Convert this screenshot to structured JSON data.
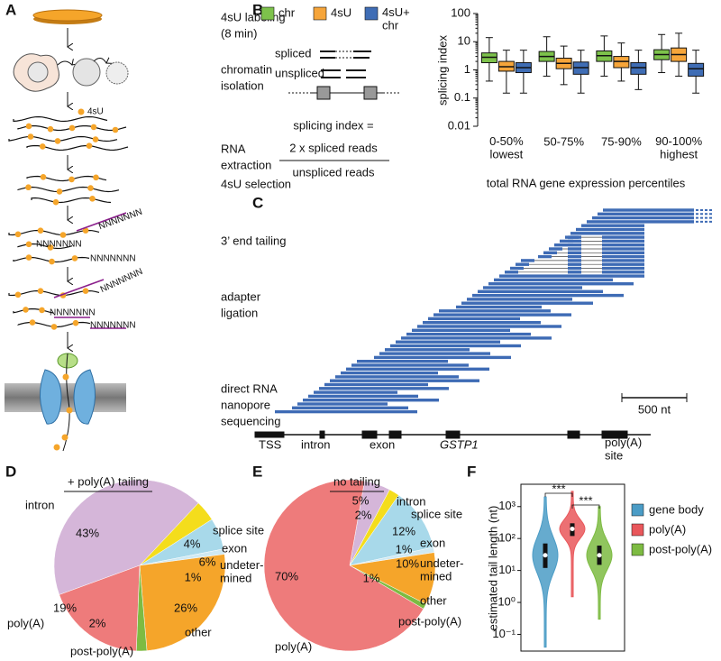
{
  "panel_labels": [
    "A",
    "B",
    "C",
    "D",
    "E",
    "F"
  ],
  "diagram_a": {
    "steps": [
      {
        "lines": [
          "4sU labeling",
          "(8 min)"
        ]
      },
      {
        "lines": [
          "chromatin",
          "isolation"
        ]
      },
      {
        "lines": [
          "RNA",
          "extraction"
        ]
      },
      {
        "lines": [
          "4sU selection"
        ]
      },
      {
        "lines": [
          "3’ end tailing"
        ]
      },
      {
        "lines": [
          "adapter",
          "ligation"
        ]
      },
      {
        "lines": [
          "direct RNA",
          "nanopore",
          "sequencing"
        ]
      }
    ],
    "dot_label": "4sU",
    "tail_labels": [
      "NNNNNNN",
      "NNNNNNN",
      "NNNNNNN",
      "NNNNNNN",
      "NNNNNNN",
      "NNNNNNN"
    ]
  },
  "splicing_diagram": {
    "spliced": "spliced",
    "unspliced": "unspliced",
    "formula_label": "splicing index =",
    "numerator": "2 x spliced reads",
    "denominator": "unspliced reads"
  },
  "reads_diagram": {
    "scale_label": "500 nt",
    "gene_labels": [
      "TSS",
      "intron",
      "exon"
    ],
    "gene_name": "GSTP1",
    "site_label": "poly(A)\nsite"
  },
  "chart_data": [
    {
      "type": "box",
      "y_label": "splicing index",
      "x_label": "total RNA gene expression percentiles",
      "categories": [
        "0-50%\nlowest",
        "50-75%",
        "75-90%",
        "90-100%\nhighest"
      ],
      "ylim": [
        0.01,
        100
      ],
      "yticks": [
        0.01,
        0.1,
        1,
        10,
        100
      ],
      "log_y": true,
      "series": [
        {
          "name": "chr",
          "color": "#7dc24b",
          "median": [
            2.8,
            3,
            3.2,
            3.5
          ],
          "q1": [
            1.8,
            2,
            2,
            2.3
          ],
          "q3": [
            4,
            4.5,
            4.7,
            5.2
          ],
          "whisker_low": [
            0.4,
            0.6,
            0.6,
            0.8
          ],
          "whisker_high": [
            14,
            15,
            16,
            18
          ]
        },
        {
          "name": "4sU",
          "color": "#f6a53a",
          "median": [
            1.3,
            1.7,
            2,
            3.5
          ],
          "q1": [
            0.9,
            1.1,
            1.2,
            2
          ],
          "q3": [
            2,
            2.6,
            3,
            6
          ],
          "whisker_low": [
            0.15,
            0.3,
            0.4,
            0.6
          ],
          "whisker_high": [
            5,
            7,
            9,
            20
          ]
        },
        {
          "name": "4sU+\nchr",
          "color": "#3f6db5",
          "median": [
            1.2,
            1.2,
            1.2,
            1.1
          ],
          "q1": [
            0.8,
            0.7,
            0.7,
            0.6
          ],
          "q3": [
            1.8,
            1.9,
            1.8,
            1.7
          ],
          "whisker_low": [
            0.15,
            0.15,
            0.2,
            0.15
          ],
          "whisker_high": [
            5,
            5,
            5,
            5
          ]
        }
      ]
    },
    {
      "type": "pie",
      "title": "+ poly(A) tailing",
      "categories": [
        "intron",
        "splice site",
        "exon",
        "undeter-\nmined",
        "other",
        "post-poly(A)",
        "poly(A)"
      ],
      "values": [
        43,
        4,
        6,
        1,
        26,
        2,
        19
      ],
      "value_labels": [
        "43%",
        "4%",
        "6%",
        "1%",
        "26%",
        "2%",
        "19%"
      ],
      "colors": [
        "#d5b6d9",
        "#f4dd1c",
        "#a8d9ea",
        "#cfe9f3",
        "#f5a52a",
        "#7dbb42",
        "#ee7b7b"
      ]
    },
    {
      "type": "pie",
      "title": "no tailing",
      "categories": [
        "intron",
        "splice site",
        "exon",
        "undeter-\nmined",
        "other",
        "post-poly(A)",
        "poly(A)"
      ],
      "values": [
        5,
        2,
        12,
        1,
        10,
        1,
        70
      ],
      "value_labels": [
        "5%",
        "2%",
        "12%",
        "1%",
        "10%",
        "1%",
        "70%"
      ],
      "colors": [
        "#d5b6d9",
        "#f4dd1c",
        "#a8d9ea",
        "#cfe9f3",
        "#f5a52a",
        "#7dbb42",
        "#ee7b7b"
      ]
    },
    {
      "type": "violin",
      "y_label": "estimated tail length (nt)",
      "log_y": true,
      "ylim": [
        0.03,
        5000
      ],
      "yticks": [
        {
          "value": 0.1,
          "label": "10⁻¹"
        },
        {
          "value": 1,
          "label": "10⁰"
        },
        {
          "value": 10,
          "label": "10¹"
        },
        {
          "value": 100,
          "label": "10²"
        },
        {
          "value": 1000,
          "label": "10³"
        }
      ],
      "series": [
        {
          "name": "gene body",
          "color": "#4b9cc6",
          "median": 30,
          "q1": 12,
          "q3": 70,
          "min": 0.04,
          "max": 2000
        },
        {
          "name": "poly(A)",
          "color": "#e9575b",
          "median": 200,
          "q1": 120,
          "q3": 300,
          "min": 1.5,
          "max": 3000
        },
        {
          "name": "post-poly(A)",
          "color": "#7dbb42",
          "median": 30,
          "q1": 15,
          "q3": 60,
          "min": 0.3,
          "max": 1000
        }
      ],
      "annotations": [
        "***",
        "***"
      ]
    }
  ]
}
